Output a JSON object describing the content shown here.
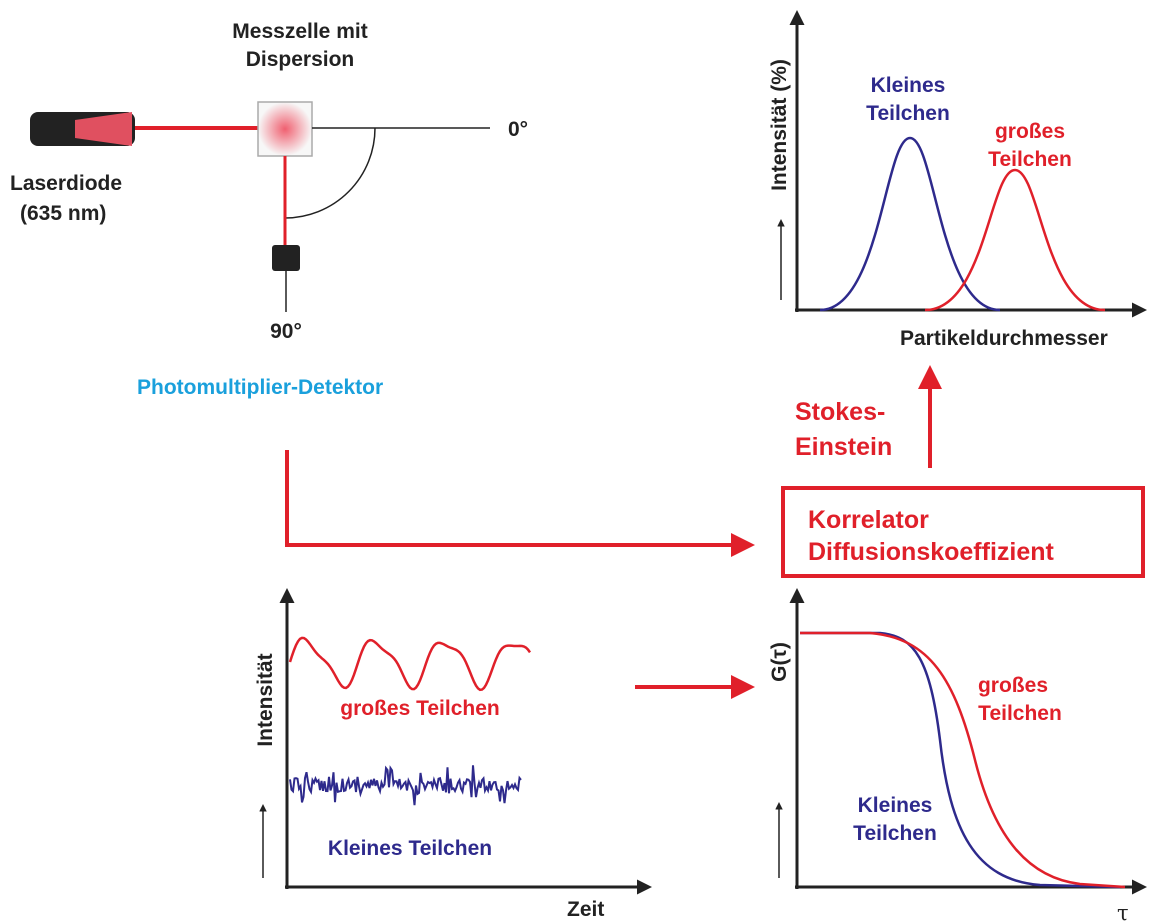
{
  "setup": {
    "cell_label": [
      "Messzelle mit",
      "Dispersion"
    ],
    "laser_label": [
      "Laserdiode",
      "(635 nm)"
    ],
    "angle_0": "0°",
    "angle_90": "90°",
    "detector": "Photomultiplier-Detektor"
  },
  "size_plot": {
    "y_label": "Intensität (%)",
    "x_label": "Partikeldurchmesser",
    "small": [
      "Kleines",
      "Teilchen"
    ],
    "large": [
      "großes",
      "Teilchen"
    ]
  },
  "stokes": [
    "Stokes-",
    "Einstein"
  ],
  "correlator": [
    "Korrelator",
    "Diffusionskoeffizient"
  ],
  "signal_plot": {
    "y_label": "Intensität",
    "x_label": "Zeit",
    "large": "großes Teilchen",
    "small": "Kleines Teilchen"
  },
  "correlation_plot": {
    "y_label": "G(τ)",
    "x_label": "τ",
    "large": [
      "großes",
      "Teilchen"
    ],
    "small": [
      "Kleines",
      "Teilchen"
    ]
  }
}
